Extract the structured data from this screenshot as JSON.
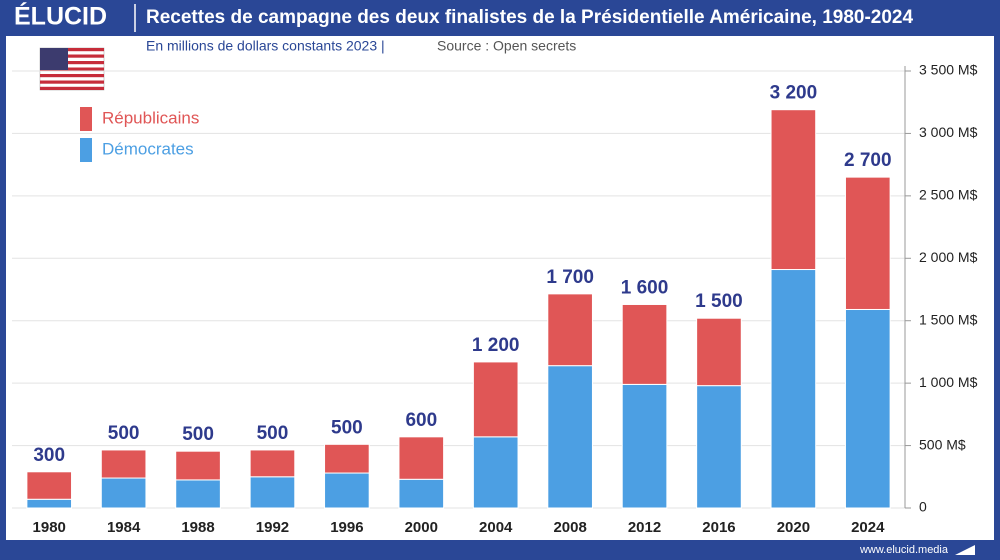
{
  "brand": "ÉLUCID",
  "website": "www.elucid.media",
  "chart_data": {
    "type": "stacked-bar",
    "title": "Recettes de campagne des deux finalistes de la Présidentielle Américaine, 1980-2024",
    "subtitle": "En millions de dollars constants 2023 |",
    "source": "Source : Open secrets",
    "categories": [
      "1980",
      "1984",
      "1988",
      "1992",
      "1996",
      "2000",
      "2004",
      "2008",
      "2012",
      "2016",
      "2020",
      "2024"
    ],
    "series": [
      {
        "name": "Démocrates",
        "color": "#4c9fe3",
        "values": [
          70,
          240,
          225,
          250,
          280,
          230,
          570,
          1140,
          990,
          980,
          1910,
          1590
        ]
      },
      {
        "name": "Républicains",
        "color": "#e05656",
        "values": [
          220,
          225,
          230,
          215,
          230,
          340,
          600,
          575,
          640,
          540,
          1280,
          1060
        ]
      }
    ],
    "totals": {
      "values": [
        300,
        500,
        500,
        500,
        500,
        600,
        1200,
        1700,
        1600,
        1500,
        3200,
        2700
      ],
      "value_labels": [
        "300",
        "500",
        "500",
        "500",
        "500",
        "600",
        "1 200",
        "1 700",
        "1 600",
        "1 500",
        "3 200",
        "2 700"
      ]
    },
    "ylim": [
      0,
      3500
    ],
    "yticks": [
      0,
      {
        "value": 500,
        "label": "500 M$"
      },
      {
        "value": 1000,
        "label": "1 000 M$"
      },
      {
        "value": 1500,
        "label": "1 500 M$"
      },
      {
        "value": 2000,
        "label": "2 000 M$"
      },
      {
        "value": 2500,
        "label": "2 500 M$"
      },
      {
        "value": 3000,
        "label": "3 000 M$"
      },
      {
        "value": 3500,
        "label": "3 500 M$"
      }
    ],
    "grid": true
  }
}
